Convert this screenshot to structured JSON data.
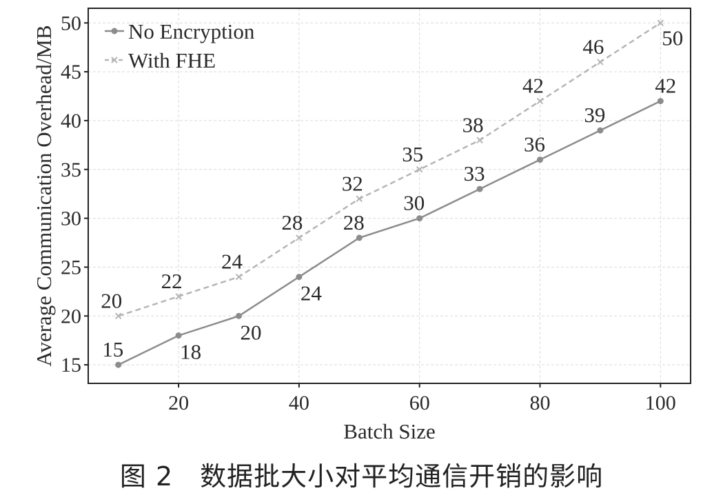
{
  "caption": "图 2　数据批大小对平均通信开销的影响",
  "chart_data": {
    "type": "line",
    "xlabel": "Batch Size",
    "ylabel": "Average Communication Overhead/MB",
    "x": [
      10,
      20,
      30,
      40,
      50,
      60,
      70,
      80,
      90,
      100
    ],
    "xlim": [
      5,
      105
    ],
    "ylim": [
      13.1,
      51.5
    ],
    "xticks": [
      20,
      40,
      60,
      80,
      100
    ],
    "yticks": [
      15,
      20,
      25,
      30,
      35,
      40,
      45,
      50
    ],
    "grid": true,
    "legend_position": "top-left",
    "series": [
      {
        "name": "No Encryption",
        "values": [
          15,
          18,
          20,
          24,
          28,
          30,
          33,
          36,
          39,
          42
        ],
        "color": "#8c8c8c",
        "line_style": "solid",
        "marker": "circle"
      },
      {
        "name": "With FHE",
        "values": [
          20,
          22,
          24,
          28,
          32,
          35,
          38,
          42,
          46,
          50
        ],
        "color": "#b5b5b5",
        "line_style": "dashed",
        "marker": "x"
      }
    ]
  }
}
